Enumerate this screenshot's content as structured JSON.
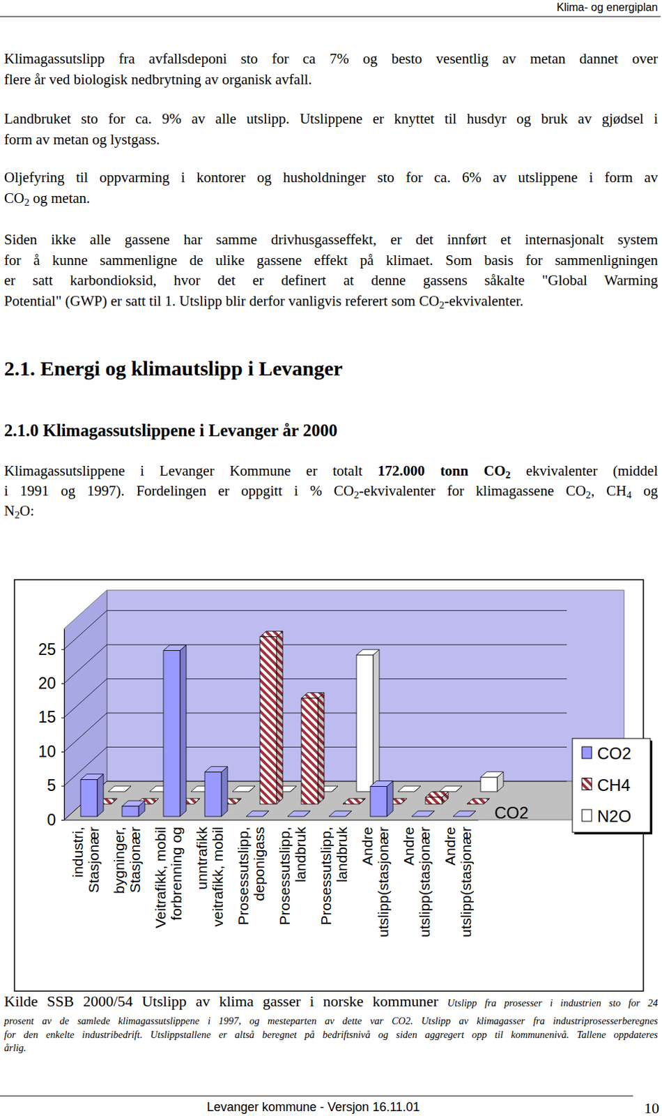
{
  "header": "Klima- og energiplan",
  "paragraphs": [
    {
      "lines": [
        [
          "Klimagassutslipp fra avfallsdeponi sto for ca 7%  og besto vesentlig av metan dannet over"
        ],
        [
          "flere år ved biologisk nedbrytning av organisk avfall."
        ]
      ]
    },
    {
      "lines": [
        [
          "Landbruket sto for ca. 9% av alle utslipp. Utslippene er knyttet til husdyr og bruk av gjødsel i"
        ],
        [
          "form av metan og lystgass."
        ]
      ]
    },
    {
      "lines": [
        [
          "Oljefyring til oppvarming i kontorer og husholdninger sto for ca. 6% av utslippene i form av"
        ],
        [
          "CO",
          {
            "sub": "2"
          },
          " og metan."
        ]
      ]
    },
    {
      "lines": [
        [
          "Siden ikke alle gassene har samme drivhusgasseffekt, er det innført et internasjonalt system"
        ],
        [
          "for å kunne sammenligne de ulike gassene effekt på klimaet. Som basis for sammenligningen"
        ],
        [
          "er satt karbondioksid, hvor det er definert at denne gassens såkalte \"Global Warming"
        ],
        [
          "Potential\" (GWP) er satt til 1. Utslipp blir derfor vanligvis referert som CO",
          {
            "sub": "2"
          },
          "-ekvivalenter."
        ]
      ]
    }
  ],
  "heading": "2.1. Energi og klimautslipp i Levanger",
  "subheading": "2.1.0 Klimagassutslippene i Levanger år 2000",
  "intro": {
    "lines": [
      [
        "Klimagassutslippene i Levanger Kommune er  totalt ",
        {
          "bold": "172.000 tonn CO"
        },
        {
          "bold_sub": "2"
        },
        " ekvivalenter (middel"
      ],
      [
        "i 1991 og 1997). Fordelingen er oppgitt i % CO",
        {
          "sub": "2"
        },
        "-ekvivalenter for klimagassene CO",
        {
          "sub": "2"
        },
        ", CH",
        {
          "sub": "4"
        },
        " og"
      ],
      [
        "N",
        {
          "sub": "2"
        },
        "O:"
      ]
    ]
  },
  "chart_data": {
    "type": "bar",
    "categories": [
      "industri,\nStasjonær",
      "bygninger,\nStasjonær",
      "Veitrafikk, mobil\nforbrenning og",
      "unntrafikk\nveitrafikk, mobil",
      "Prosessutslipp,\ndeponigass",
      "Prosessutslipp,\nlandbruk",
      "Prosessutslipp,\nlandbruk",
      "Andre\nutslipp(stasjonær",
      "Andre\nutslipp(stasjonær",
      "Andre\nutslipp(stasjonær"
    ],
    "series": [
      {
        "name": "CO2",
        "color": "#9999ff",
        "values": [
          5.4,
          1.5,
          24.3,
          6.5,
          0,
          0,
          0,
          4.4,
          0,
          0
        ]
      },
      {
        "name": "CH4",
        "color": "#a3303a",
        "marker": "hatch",
        "values": [
          0,
          0,
          0,
          0,
          24.5,
          15.5,
          0,
          0,
          1.0,
          0
        ]
      },
      {
        "name": "N2O",
        "color": "#ffffff",
        "values": [
          0,
          0,
          0,
          0,
          0,
          0,
          20,
          0,
          0,
          2.1
        ]
      }
    ],
    "ylim": [
      0,
      28
    ],
    "yticks": [
      0,
      5,
      10,
      15,
      20,
      25
    ],
    "grid": true,
    "legend": "right"
  },
  "source": {
    "lines": [
      [
        "Kilde SSB 2000/54 Utslipp av klima gasser i norske kommuner ",
        {
          "italic": "Utslipp fra prosesser i industrien sto for 24"
        }
      ],
      [
        {
          "italic": "prosent av de samlede klimagassutslippene i 1997, og mesteparten av dette var CO2. Utslipp av klimagasser fra industriprosesserberegnes"
        }
      ],
      [
        {
          "italic": "for den enkelte industribedrift. Utslippstallene er altså beregnet på bedriftsnivå og siden aggregert opp til kommunenivå. Tallene oppdateres"
        }
      ],
      [
        {
          "italic": "årlig."
        }
      ]
    ]
  },
  "footer": "Levanger kommune - Versjon 16.11.01",
  "page_number": 10
}
